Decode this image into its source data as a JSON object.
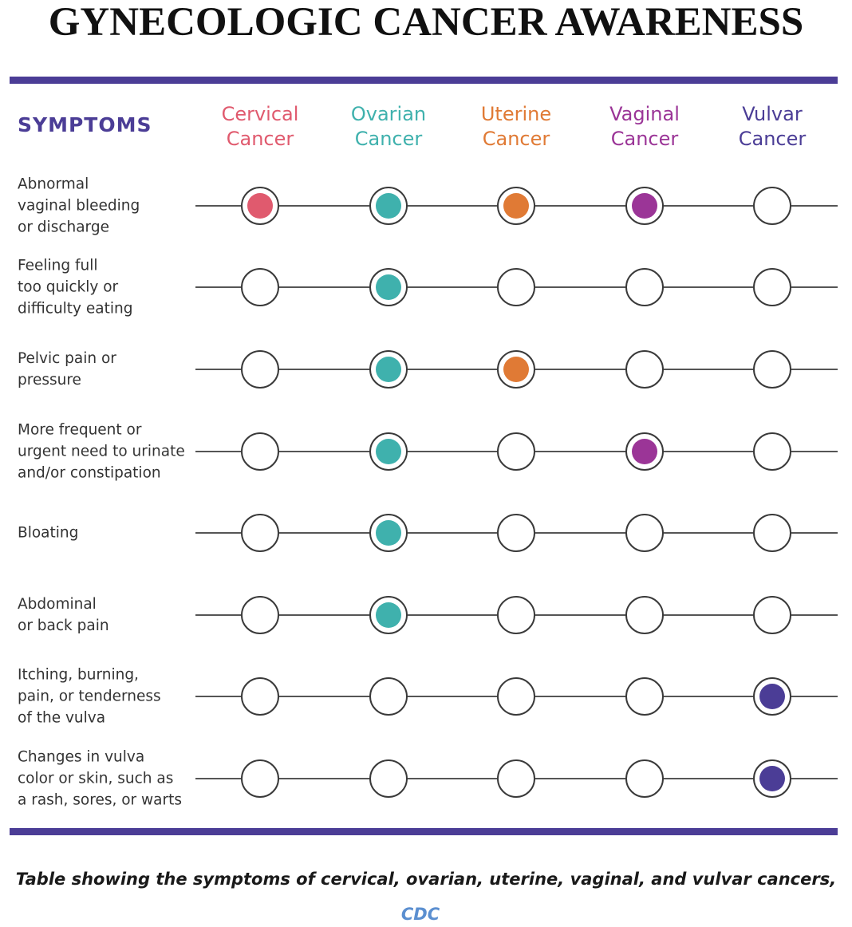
{
  "title": "GYNECOLOGIC CANCER AWARENESS",
  "colors": {
    "rule": "#4b3d96",
    "symptoms_header": "#4b3d96",
    "ring": "#3a3a3a",
    "link": "#5b8fd0"
  },
  "table": {
    "symptoms_header": "SYMPTOMS",
    "columns": [
      {
        "line1": "Cervical",
        "line2": "Cancer",
        "color": "#e05a6e"
      },
      {
        "line1": "Ovarian",
        "line2": "Cancer",
        "color": "#3fb1ad"
      },
      {
        "line1": "Uterine",
        "line2": "Cancer",
        "color": "#e07a35"
      },
      {
        "line1": "Vaginal",
        "line2": "Cancer",
        "color": "#9b3597"
      },
      {
        "line1": "Vulvar",
        "line2": "Cancer",
        "color": "#4b3d96"
      }
    ],
    "rows": [
      {
        "label": [
          "Abnormal",
          "vaginal bleeding",
          "or discharge"
        ],
        "marks": [
          true,
          true,
          true,
          true,
          false
        ]
      },
      {
        "label": [
          "Feeling full",
          "too quickly or",
          "difficulty eating"
        ],
        "marks": [
          false,
          true,
          false,
          false,
          false
        ]
      },
      {
        "label": [
          "Pelvic pain or",
          "pressure"
        ],
        "marks": [
          false,
          true,
          true,
          false,
          false
        ]
      },
      {
        "label": [
          "More frequent or",
          "urgent need to urinate",
          "and/or constipation"
        ],
        "marks": [
          false,
          true,
          false,
          true,
          false
        ]
      },
      {
        "label": [
          "Bloating"
        ],
        "marks": [
          false,
          true,
          false,
          false,
          false
        ]
      },
      {
        "label": [
          "Abdominal",
          "or back pain"
        ],
        "marks": [
          false,
          true,
          false,
          false,
          false
        ]
      },
      {
        "label": [
          "Itching, burning,",
          "pain, or tenderness",
          "of the vulva"
        ],
        "marks": [
          false,
          false,
          false,
          false,
          true
        ]
      },
      {
        "label": [
          "Changes in vulva",
          "color or skin, such as",
          "a rash, sores, or warts"
        ],
        "marks": [
          false,
          false,
          false,
          false,
          true
        ]
      }
    ]
  },
  "caption": "Table showing the symptoms of cervical, ovarian, uterine, vaginal, and vulvar cancers,",
  "source": "CDC"
}
